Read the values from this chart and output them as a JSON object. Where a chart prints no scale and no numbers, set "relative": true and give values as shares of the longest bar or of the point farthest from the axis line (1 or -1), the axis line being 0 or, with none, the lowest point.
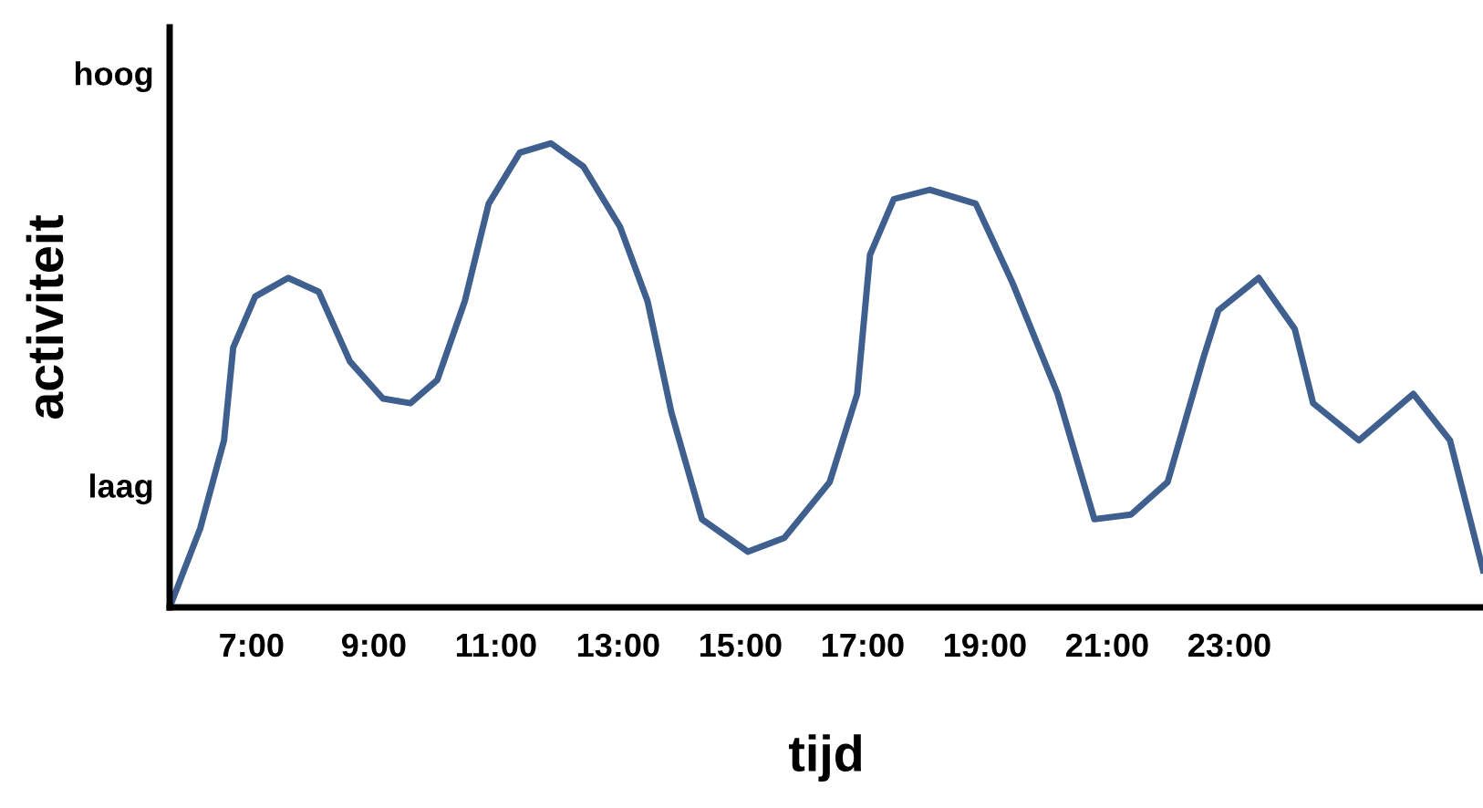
{
  "chart_data": {
    "type": "line",
    "xlabel": "tijd",
    "ylabel": "activiteit",
    "relative": true,
    "annotations": [
      "hoog",
      "laag"
    ],
    "x": [
      5.66,
      6.16,
      6.55,
      6.7,
      7.06,
      7.6,
      8.1,
      8.61,
      9.15,
      9.6,
      10.04,
      10.49,
      10.88,
      11.39,
      11.9,
      12.43,
      13.03,
      13.48,
      13.87,
      14.37,
      15.12,
      15.72,
      16.46,
      16.91,
      17.12,
      17.51,
      18.1,
      18.85,
      19.45,
      20.19,
      20.79,
      21.39,
      21.99,
      22.58,
      22.82,
      23.48,
      24.07,
      24.37,
      25.12,
      26.01,
      26.61,
      27.15
    ],
    "series": [
      {
        "color": "#3f5f8f",
        "values": [
          0,
          0.17,
          0.36,
          0.56,
          0.67,
          0.71,
          0.68,
          0.53,
          0.45,
          0.44,
          0.49,
          0.66,
          0.87,
          0.98,
          1,
          0.95,
          0.82,
          0.66,
          0.42,
          0.19,
          0.12,
          0.15,
          0.27,
          0.46,
          0.76,
          0.88,
          0.9,
          0.87,
          0.7,
          0.46,
          0.19,
          0.2,
          0.27,
          0.54,
          0.64,
          0.71,
          0.6,
          0.44,
          0.36,
          0.46,
          0.36,
          0.08
        ]
      }
    ],
    "xlim": [
      5.66,
      27.15
    ],
    "xticks": [
      {
        "value": 7,
        "label": "7:00"
      },
      {
        "value": 9,
        "label": "9:00"
      },
      {
        "value": 11,
        "label": "11:00"
      },
      {
        "value": 13,
        "label": "13:00"
      },
      {
        "value": 15,
        "label": "15:00"
      },
      {
        "value": 17,
        "label": "17:00"
      },
      {
        "value": 19,
        "label": "19:00"
      },
      {
        "value": 21,
        "label": "21:00"
      },
      {
        "value": 23,
        "label": "23:00"
      }
    ],
    "grid": false,
    "marker": "none",
    "line_style": "solid"
  }
}
